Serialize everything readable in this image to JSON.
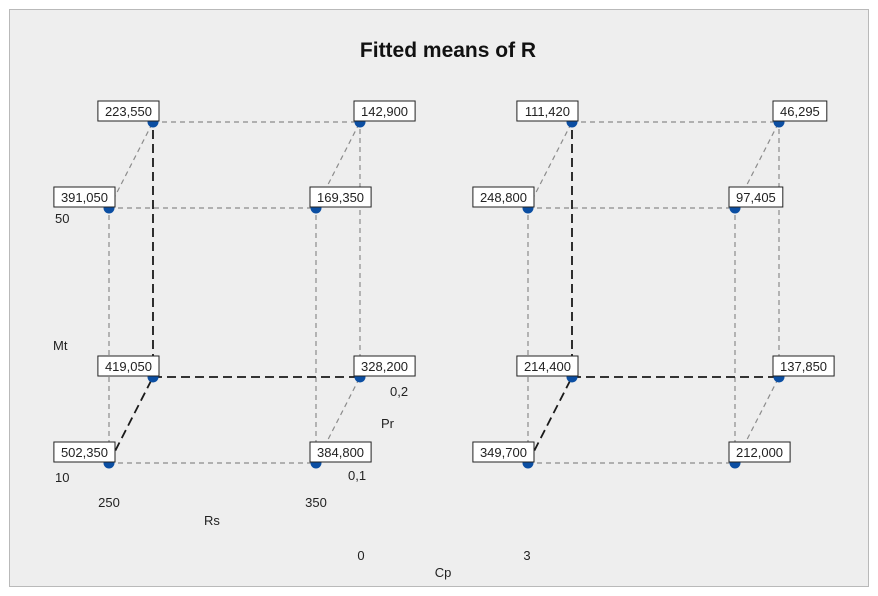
{
  "chart_data": {
    "type": "cube",
    "title": "Fitted means of R",
    "point_color": "#0b4ea2",
    "factors": {
      "Rs": {
        "label": "Rs",
        "levels": [
          "250",
          "350"
        ]
      },
      "Mt": {
        "label": "Mt",
        "levels": [
          "10",
          "50"
        ]
      },
      "Pr": {
        "label": "Pr",
        "levels": [
          "0,1",
          "0,2"
        ]
      },
      "Cp": {
        "label": "Cp",
        "levels": [
          "0",
          "3"
        ]
      }
    },
    "cubes": [
      {
        "Cp": "0",
        "points": [
          {
            "Rs": "250",
            "Mt": "10",
            "Pr": "0,1",
            "value": "502,350"
          },
          {
            "Rs": "350",
            "Mt": "10",
            "Pr": "0,1",
            "value": "384,800"
          },
          {
            "Rs": "250",
            "Mt": "50",
            "Pr": "0,1",
            "value": "391,050"
          },
          {
            "Rs": "350",
            "Mt": "50",
            "Pr": "0,1",
            "value": "169,350"
          },
          {
            "Rs": "250",
            "Mt": "10",
            "Pr": "0,2",
            "value": "419,050"
          },
          {
            "Rs": "350",
            "Mt": "10",
            "Pr": "0,2",
            "value": "328,200"
          },
          {
            "Rs": "250",
            "Mt": "50",
            "Pr": "0,2",
            "value": "223,550"
          },
          {
            "Rs": "350",
            "Mt": "50",
            "Pr": "0,2",
            "value": "142,900"
          }
        ]
      },
      {
        "Cp": "3",
        "points": [
          {
            "Rs": "250",
            "Mt": "10",
            "Pr": "0,1",
            "value": "349,700"
          },
          {
            "Rs": "350",
            "Mt": "10",
            "Pr": "0,1",
            "value": "212,000"
          },
          {
            "Rs": "250",
            "Mt": "50",
            "Pr": "0,1",
            "value": "248,800"
          },
          {
            "Rs": "350",
            "Mt": "50",
            "Pr": "0,1",
            "value": "97,405"
          },
          {
            "Rs": "250",
            "Mt": "10",
            "Pr": "0,2",
            "value": "214,400"
          },
          {
            "Rs": "350",
            "Mt": "10",
            "Pr": "0,2",
            "value": "137,850"
          },
          {
            "Rs": "250",
            "Mt": "50",
            "Pr": "0,2",
            "value": "111,420"
          },
          {
            "Rs": "350",
            "Mt": "50",
            "Pr": "0,2",
            "value": "46,295"
          }
        ]
      }
    ]
  }
}
